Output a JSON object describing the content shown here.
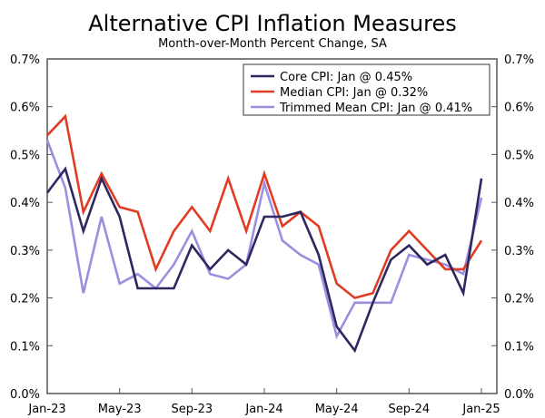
{
  "chart_data": {
    "type": "line",
    "title": "Alternative CPI Inflation Measures",
    "subtitle": "Month-over-Month Percent Change, SA",
    "x": [
      "2023-01",
      "2023-02",
      "2023-03",
      "2023-04",
      "2023-05",
      "2023-06",
      "2023-07",
      "2023-08",
      "2023-09",
      "2023-10",
      "2023-11",
      "2023-12",
      "2024-01",
      "2024-02",
      "2024-03",
      "2024-04",
      "2024-05",
      "2024-06",
      "2024-07",
      "2024-08",
      "2024-09",
      "2024-10",
      "2024-11",
      "2024-12",
      "2025-01"
    ],
    "xticks": [
      "Jan-23",
      "May-23",
      "Sep-23",
      "Jan-24",
      "May-24",
      "Sep-24",
      "Jan-25"
    ],
    "yticks": [
      "0.0%",
      "0.1%",
      "0.2%",
      "0.3%",
      "0.4%",
      "0.5%",
      "0.6%",
      "0.7%"
    ],
    "ylim": [
      0,
      0.7
    ],
    "grid": false,
    "legend": "top-right",
    "series": [
      {
        "name": "Core CPI: Jan @ 0.45%",
        "color": "#2e2760",
        "values": [
          0.42,
          0.47,
          0.34,
          0.45,
          0.37,
          0.22,
          0.22,
          0.22,
          0.31,
          0.26,
          0.3,
          0.27,
          0.37,
          0.37,
          0.38,
          0.29,
          0.14,
          0.09,
          0.19,
          0.28,
          0.31,
          0.27,
          0.29,
          0.21,
          0.45
        ]
      },
      {
        "name": "Median CPI: Jan @ 0.32%",
        "color": "#e03c24",
        "values": [
          0.54,
          0.58,
          0.38,
          0.46,
          0.39,
          0.38,
          0.26,
          0.34,
          0.39,
          0.34,
          0.45,
          0.34,
          0.46,
          0.35,
          0.38,
          0.35,
          0.23,
          0.2,
          0.21,
          0.3,
          0.34,
          0.3,
          0.26,
          0.26,
          0.32
        ]
      },
      {
        "name": "Trimmed Mean CPI: Jan @ 0.41%",
        "color": "#9b8fe0",
        "values": [
          0.53,
          0.43,
          0.21,
          0.37,
          0.23,
          0.25,
          0.22,
          0.27,
          0.34,
          0.25,
          0.24,
          0.27,
          0.44,
          0.32,
          0.29,
          0.27,
          0.12,
          0.19,
          0.19,
          0.19,
          0.29,
          0.28,
          0.27,
          0.25,
          0.41
        ]
      }
    ]
  }
}
